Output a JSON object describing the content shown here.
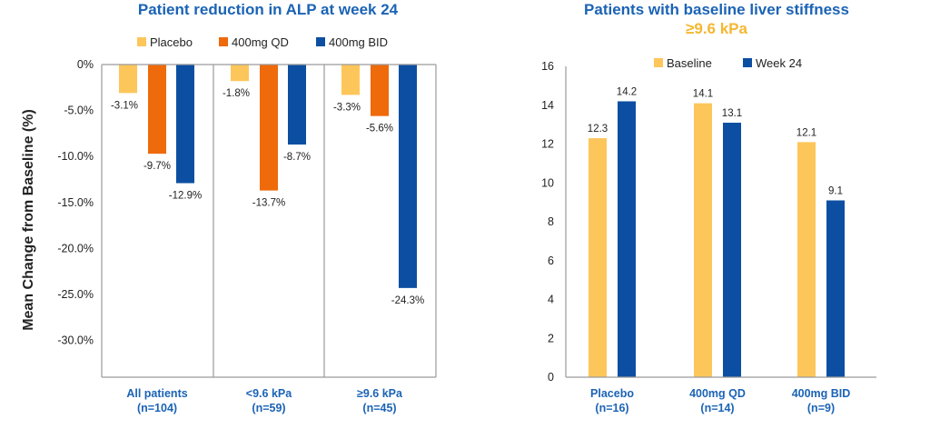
{
  "colors": {
    "title": "#1b63b5",
    "subtitle": "#f5b731",
    "category": "#1b63b5",
    "axis": "#9a9a9a"
  },
  "chart_data": [
    {
      "type": "bar",
      "title": "Patient reduction in ALP at week 24",
      "ylabel": "Mean Change from Baseline (%)",
      "categories": [
        "All patients",
        "<9.6 kPa",
        "≥9.6 kPa"
      ],
      "category_sublabels": [
        "(n=104)",
        "(n=59)",
        "(n=45)"
      ],
      "series": [
        {
          "name": "Placebo",
          "color": "#fdc65a",
          "values": [
            -3.1,
            -1.8,
            -3.3
          ],
          "labels": [
            "-3.1%",
            "-1.8%",
            "-3.3%"
          ]
        },
        {
          "name": "400mg QD",
          "color": "#ee6a0a",
          "values": [
            -9.7,
            -13.7,
            -5.6
          ],
          "labels": [
            "-9.7%",
            "-13.7%",
            "-5.6%"
          ]
        },
        {
          "name": "400mg BID",
          "color": "#0c4fa2",
          "values": [
            -12.9,
            -8.7,
            -24.3
          ],
          "labels": [
            "-12.9%",
            "-8.7%",
            "-24.3%"
          ]
        }
      ],
      "ylim": [
        -34,
        0
      ],
      "yticks": [
        0,
        -5,
        -10,
        -15,
        -20,
        -25,
        -30
      ],
      "ytick_labels": [
        "0%",
        "-5.0%",
        "-10.0%",
        "-15.0%",
        "-20.0%",
        "-25.0%",
        "-30.0%"
      ],
      "legend": "top"
    },
    {
      "type": "bar",
      "title": "Patients with baseline liver stiffness",
      "subtitle": "≥9.6 kPa",
      "categories": [
        "Placebo",
        "400mg QD",
        "400mg BID"
      ],
      "category_sublabels": [
        "(n=16)",
        "(n=14)",
        "(n=9)"
      ],
      "series": [
        {
          "name": "Baseline",
          "color": "#fdc65a",
          "values": [
            12.3,
            14.1,
            12.1
          ],
          "labels": [
            "12.3",
            "14.1",
            "12.1"
          ]
        },
        {
          "name": "Week 24",
          "color": "#0c4fa2",
          "values": [
            14.2,
            13.1,
            9.1
          ],
          "labels": [
            "14.2",
            "13.1",
            "9.1"
          ]
        }
      ],
      "ylim": [
        0,
        16
      ],
      "yticks": [
        0,
        2,
        4,
        6,
        8,
        10,
        12,
        14,
        16
      ],
      "ytick_labels": [
        "0",
        "2",
        "4",
        "6",
        "8",
        "10",
        "12",
        "14",
        "16"
      ],
      "legend": "top"
    }
  ]
}
